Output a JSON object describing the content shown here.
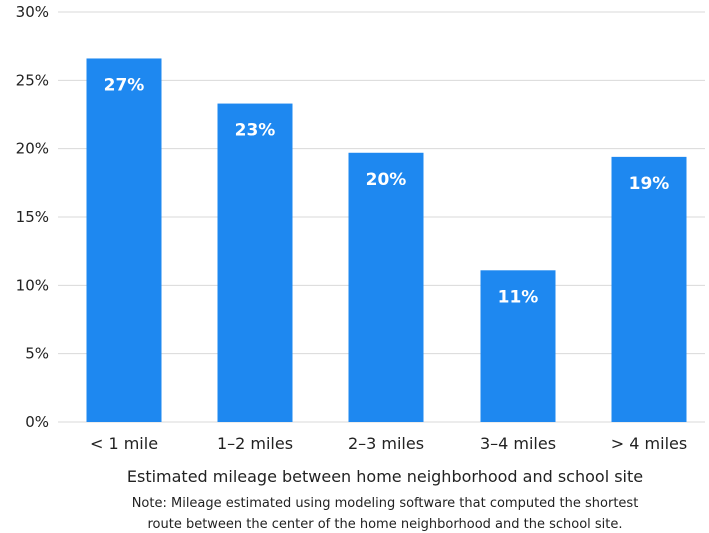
{
  "chart_data": {
    "type": "bar",
    "title": "",
    "categories": [
      "< 1 mile",
      "1–2 miles",
      "2–3 miles",
      "3–4 miles",
      "> 4 miles"
    ],
    "values": [
      26.6,
      23.3,
      19.7,
      11.1,
      19.4
    ],
    "data_labels": [
      "27%",
      "23%",
      "20%",
      "11%",
      "19%"
    ],
    "xlabel": "Estimated mileage between home neighborhood and school site",
    "ylabel": "",
    "ylim": [
      0,
      30
    ],
    "y_ticks": [
      0,
      5,
      10,
      15,
      20,
      25,
      30
    ],
    "y_tick_labels": [
      "0%",
      "5%",
      "10%",
      "15%",
      "20%",
      "25%",
      "30%"
    ],
    "note_lines": [
      "Note: Mileage estimated using modeling software that computed the shortest",
      "route between the center of the home neighborhood and the school site."
    ],
    "grid": true,
    "legend": "none",
    "bar_color": "#1e88f0",
    "grid_color": "#d9d9d9"
  }
}
